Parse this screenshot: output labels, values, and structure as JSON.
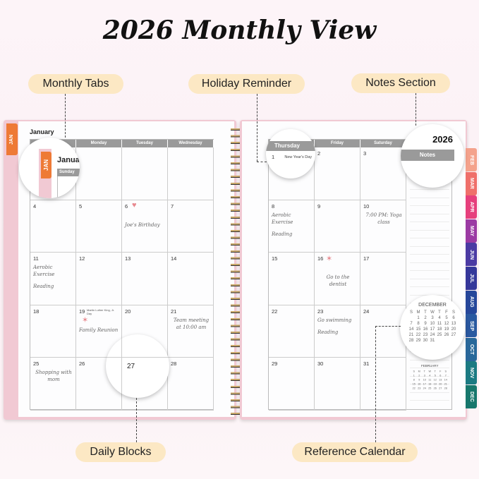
{
  "title": "2026 Monthly View",
  "callouts": {
    "monthly_tabs": "Monthly Tabs",
    "holiday_reminder": "Holiday Reminder",
    "notes_section": "Notes Section",
    "daily_blocks": "Daily Blocks",
    "reference_calendar": "Reference Calendar"
  },
  "planner": {
    "month": "January",
    "year": "2026",
    "notes_label": "Notes",
    "jan_tab": "JAN",
    "left_headers": [
      "Sunday",
      "Monday",
      "Tuesday",
      "Wednesday"
    ],
    "right_headers": [
      "Thursday",
      "Friday",
      "Saturday"
    ],
    "left_weeks": [
      [
        {
          "day": ""
        },
        {
          "day": ""
        },
        {
          "day": ""
        },
        {
          "day": ""
        }
      ],
      [
        {
          "day": "4"
        },
        {
          "day": "5"
        },
        {
          "day": "6",
          "sticker": "heart",
          "notes": [
            "Joe's Birthday"
          ]
        },
        {
          "day": "7"
        }
      ],
      [
        {
          "day": "11",
          "notes": [
            "Aerobic Exercise",
            "Reading"
          ]
        },
        {
          "day": "12"
        },
        {
          "day": "13"
        },
        {
          "day": "14"
        }
      ],
      [
        {
          "day": "18"
        },
        {
          "day": "19",
          "holiday": "Martin Luther King, Jr. Day",
          "sticker": "star",
          "notes": [
            "Family Reunion"
          ]
        },
        {
          "day": "20"
        },
        {
          "day": "21",
          "notes": [
            "Team meeting at 10:00 am"
          ]
        }
      ],
      [
        {
          "day": "25",
          "notes": [
            "Shopping with mom"
          ]
        },
        {
          "day": "26"
        },
        {
          "day": "27"
        },
        {
          "day": "28"
        }
      ]
    ],
    "right_weeks": [
      [
        {
          "day": "1",
          "holiday": "New Year's Day"
        },
        {
          "day": "2"
        },
        {
          "day": "3"
        }
      ],
      [
        {
          "day": "8",
          "notes": [
            "Aerobic Exercise",
            "Reading"
          ]
        },
        {
          "day": "9"
        },
        {
          "day": "10",
          "notes": [
            "7:00 PM: Yoga class"
          ]
        }
      ],
      [
        {
          "day": "15"
        },
        {
          "day": "16",
          "sticker": "star",
          "notes": [
            "Go to the dentist"
          ]
        },
        {
          "day": "17"
        }
      ],
      [
        {
          "day": "22"
        },
        {
          "day": "23",
          "notes": [
            "Go swimming",
            "Reading"
          ]
        },
        {
          "day": "24"
        }
      ],
      [
        {
          "day": "29"
        },
        {
          "day": "30"
        },
        {
          "day": "31"
        }
      ]
    ],
    "month_tabs": [
      {
        "label": "FEB",
        "color": "#f4a28c"
      },
      {
        "label": "MAR",
        "color": "#ef6f6a"
      },
      {
        "label": "APR",
        "color": "#e63f7c"
      },
      {
        "label": "MAY",
        "color": "#9b3aa3"
      },
      {
        "label": "JUN",
        "color": "#4b3aa3"
      },
      {
        "label": "JUL",
        "color": "#35379a"
      },
      {
        "label": "AUG",
        "color": "#26469a"
      },
      {
        "label": "SEP",
        "color": "#2a58a0"
      },
      {
        "label": "OCT",
        "color": "#29679a"
      },
      {
        "label": "NOV",
        "color": "#1b7a82"
      },
      {
        "label": "DEC",
        "color": "#17776c"
      }
    ],
    "jan_tab_color": "#ee7a36",
    "mini_calendars": [
      {
        "name": "DECEMBER",
        "weekdays": [
          "S",
          "M",
          "T",
          "W",
          "T",
          "F",
          "S"
        ],
        "weeks": [
          [
            "",
            "1",
            "2",
            "3",
            "4",
            "5",
            "6"
          ],
          [
            "7",
            "8",
            "9",
            "10",
            "11",
            "12",
            "13"
          ],
          [
            "14",
            "15",
            "16",
            "17",
            "18",
            "19",
            "20"
          ],
          [
            "21",
            "22",
            "23",
            "24",
            "25",
            "26",
            "27"
          ],
          [
            "28",
            "29",
            "30",
            "31",
            "",
            "",
            ""
          ]
        ]
      },
      {
        "name": "FEBRUARY",
        "weekdays": [
          "S",
          "M",
          "T",
          "W",
          "T",
          "F",
          "S"
        ],
        "weeks": [
          [
            "1",
            "2",
            "3",
            "4",
            "5",
            "6",
            "7"
          ],
          [
            "8",
            "9",
            "10",
            "11",
            "12",
            "13",
            "14"
          ],
          [
            "15",
            "16",
            "17",
            "18",
            "19",
            "20",
            "21"
          ],
          [
            "22",
            "23",
            "24",
            "25",
            "26",
            "27",
            "28"
          ]
        ]
      }
    ]
  }
}
